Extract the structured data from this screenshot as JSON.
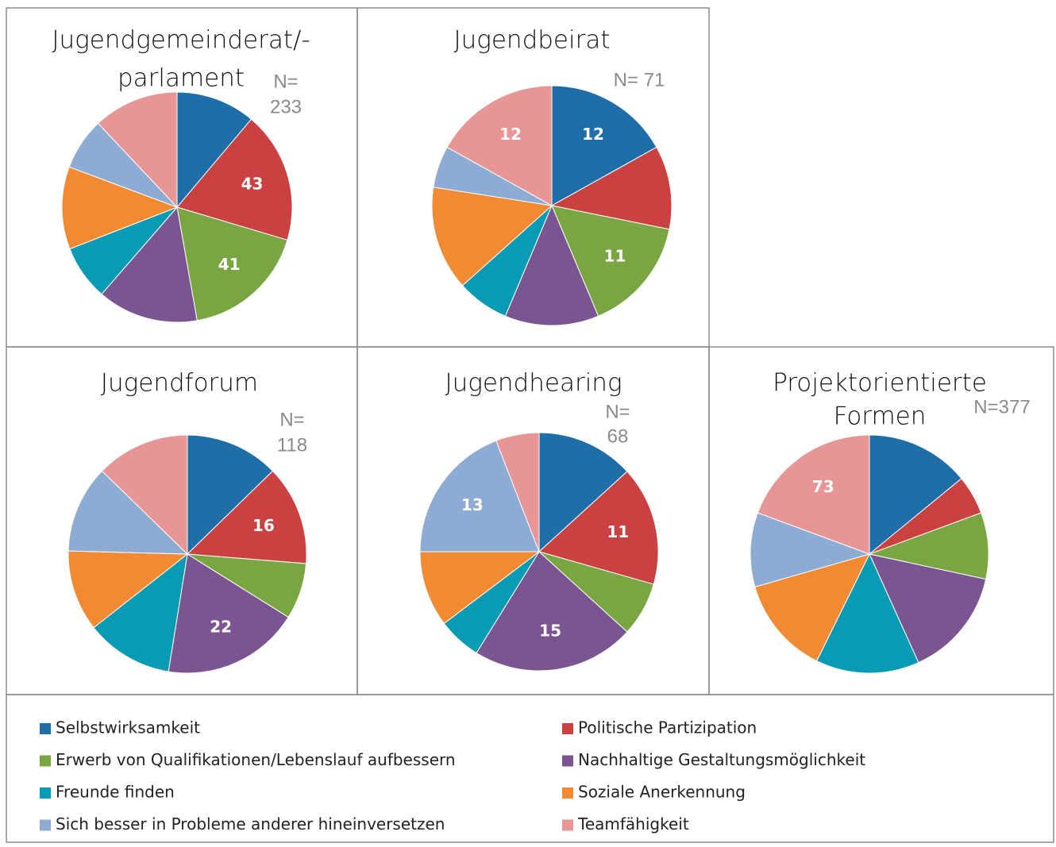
{
  "legend": {
    "categories": [
      "Selbstwirksamkeit",
      "Politische Partizipation",
      "Erwerb von Qualifikationen/Lebenslauf aufbessern",
      "Nachhaltige Gestaltungsmöglichkeit",
      "Freunde finden",
      "Soziale Anerkennung",
      "Sich besser in Probleme anderer hineinversetzen",
      "Teamfähigkeit"
    ],
    "colors": [
      "#1f6ea8",
      "#c94141",
      "#7aa543",
      "#7a5591",
      "#0a9bb4",
      "#f28a33",
      "#8eabd3",
      "#e79595"
    ]
  },
  "chart_data": [
    {
      "type": "pie",
      "title": [
        "Jugendgemeinderat/-",
        "parlament"
      ],
      "n_label": [
        "N=",
        "233"
      ],
      "values": [
        26,
        43,
        41,
        33,
        18,
        27,
        17,
        28
      ],
      "value_labels": [
        null,
        "43",
        "41",
        null,
        null,
        null,
        null,
        null
      ]
    },
    {
      "type": "pie",
      "title": [
        "Jugendbeirat"
      ],
      "n_label": [
        "N= 71"
      ],
      "values": [
        12,
        8,
        11,
        9,
        5,
        10,
        4,
        12
      ],
      "value_labels": [
        "12",
        null,
        "11",
        null,
        null,
        null,
        null,
        "12"
      ]
    },
    {
      "type": "pie",
      "title": [
        "Jugendforum"
      ],
      "n_label": [
        "N=",
        "118"
      ],
      "values": [
        15,
        16,
        9,
        22,
        14,
        13,
        14,
        15
      ],
      "value_labels": [
        null,
        "16",
        null,
        "22",
        null,
        null,
        null,
        null
      ]
    },
    {
      "type": "pie",
      "title": [
        "Jugendhearing"
      ],
      "n_label": [
        "N=",
        "68"
      ],
      "values": [
        9,
        11,
        5,
        15,
        4,
        7,
        13,
        4
      ],
      "value_labels": [
        null,
        "11",
        null,
        "15",
        null,
        null,
        "13",
        null
      ]
    },
    {
      "type": "pie",
      "title": [
        "Projektorientierte",
        "Formen"
      ],
      "n_label": [
        "N=377"
      ],
      "values": [
        53,
        20,
        34,
        56,
        53,
        50,
        38,
        73
      ],
      "value_labels": [
        null,
        null,
        null,
        null,
        null,
        null,
        null,
        "73"
      ]
    }
  ]
}
